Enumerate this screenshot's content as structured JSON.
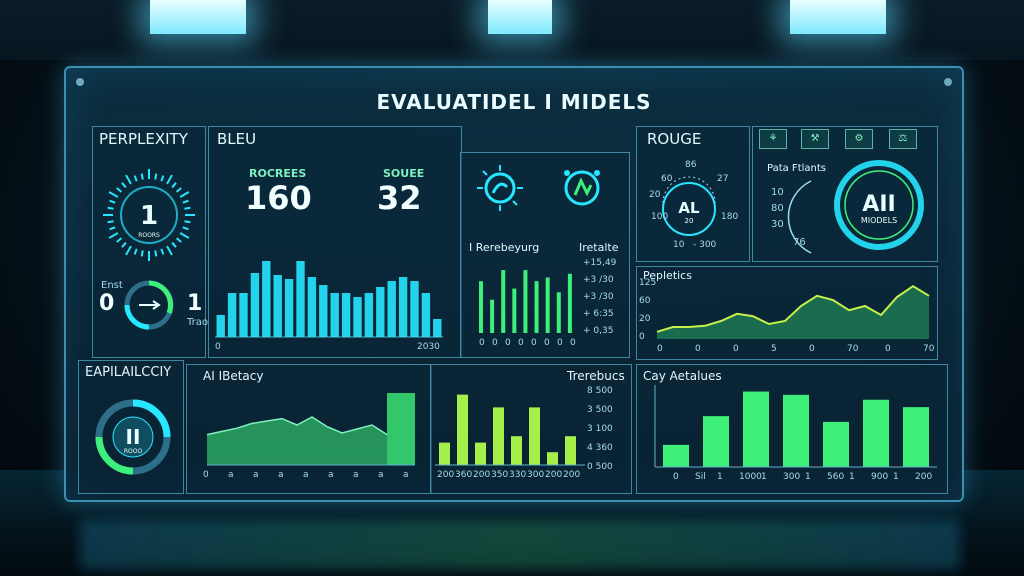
{
  "title": "EVALUATIDEL I MIDELS",
  "perplexity": {
    "header": "PERPLEXITY",
    "gauge_value": "1",
    "gauge_sub": "ROORS",
    "dial_left_label": "Enst",
    "dial_left_value": "0",
    "dial_right_value": "1",
    "dial_right_label": "Trao"
  },
  "explainability": {
    "header": "EAPILAILCCIY",
    "gauge_value": "II",
    "gauge_sub": "ROOO"
  },
  "bleu": {
    "header": "BLEU",
    "stat1_label": "ROCREES",
    "stat1_value": "160",
    "stat2_label": "SOUEE",
    "stat2_value": "32",
    "axis_start": "0",
    "axis_end": "2030"
  },
  "bleu_bars": [
    0.22,
    0.44,
    0.44,
    0.64,
    0.76,
    0.62,
    0.58,
    0.76,
    0.6,
    0.52,
    0.44,
    0.44,
    0.4,
    0.44,
    0.5,
    0.56,
    0.6,
    0.56,
    0.44,
    0.18
  ],
  "mini_chart": {
    "title": "I Rerebeyurg",
    "right_title": "Iretalte",
    "ticks": [
      "+15,49",
      "+3 /30",
      "+3 /30",
      "+ 6:35",
      "+ 0,35"
    ],
    "x_ticks": [
      "0",
      "0",
      "0",
      "0",
      "0",
      "0",
      "0",
      "0"
    ]
  },
  "mini_bars": [
    0.7,
    0.45,
    0.85,
    0.6,
    0.85,
    0.7,
    0.75,
    0.55,
    0.8
  ],
  "accuracy": {
    "header": "AI IBetacy",
    "x_ticks": [
      "0",
      "a",
      "a",
      "a",
      "a",
      "a",
      "a",
      "a",
      "a"
    ]
  },
  "area_values": [
    0.38,
    0.42,
    0.46,
    0.52,
    0.55,
    0.58,
    0.5,
    0.6,
    0.48,
    0.4,
    0.45,
    0.5,
    0.38,
    0.9
  ],
  "throughput": {
    "header": "Trerebucs",
    "ticks": [
      "8 500",
      "3 500",
      "3 100",
      "4 360",
      "0 500"
    ],
    "x_ticks": [
      "200",
      "360",
      "200",
      "350",
      "330",
      "300",
      "200",
      "200"
    ]
  },
  "throughput_bars": [
    0.28,
    0.88,
    0.28,
    0.72,
    0.36,
    0.72,
    0.16,
    0.36
  ],
  "rouge": {
    "header": "ROUGE",
    "ring_label": "AL",
    "ring_sub": "20",
    "top_a": "60",
    "top_b": "86",
    "top_c": "27",
    "left_a": "20",
    "left_b": "100",
    "bottom_a": "10",
    "bottom_b": "- 300",
    "right_a": "180",
    "side_title": "Pata Ftlants",
    "side_ticks": [
      "10",
      "80",
      "30",
      "76"
    ],
    "big_ring_label": "AII",
    "big_ring_sub": "MIODELS"
  },
  "tools": [
    "⚘",
    "⚒",
    "⚙",
    "⚖"
  ],
  "perplexity_line": {
    "header": "Pepletics",
    "y_ticks": [
      "125",
      "60",
      "20",
      "0"
    ],
    "x_ticks": [
      "0",
      "0",
      "0",
      "5",
      "0",
      "70",
      "0",
      "70"
    ]
  },
  "perplexity_line_values": [
    0.12,
    0.2,
    0.2,
    0.22,
    0.3,
    0.42,
    0.38,
    0.25,
    0.3,
    0.55,
    0.72,
    0.65,
    0.48,
    0.55,
    0.4,
    0.7,
    0.88,
    0.72
  ],
  "custom_metrics": {
    "header": "Cay Aetalues",
    "x_ticks": [
      "0",
      "Sil",
      "1",
      "1000",
      "1",
      "300",
      "1",
      "560",
      "1",
      "900",
      "1",
      "200"
    ]
  },
  "custom_bars": [
    0.27,
    0.62,
    0.92,
    0.88,
    0.55,
    0.82,
    0.73
  ],
  "colors": {
    "cyan": "#27e6ff",
    "green": "#3ef07a",
    "lime": "#a6f04a",
    "border": "#3f86a3"
  }
}
